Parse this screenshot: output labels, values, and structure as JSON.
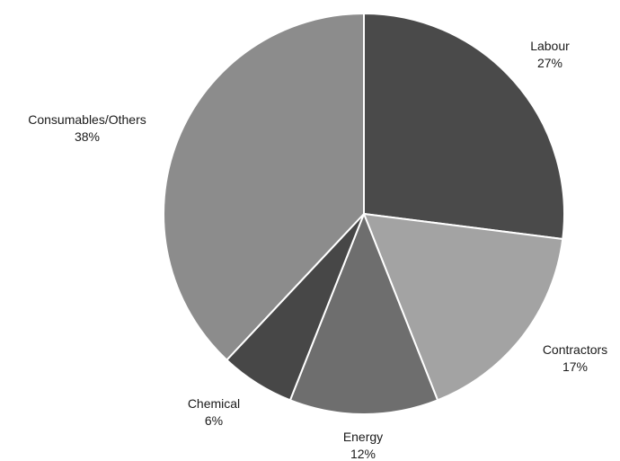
{
  "chart_data": {
    "type": "pie",
    "title": "",
    "start_angle_deg": 0,
    "direction": "clockwise",
    "slices": [
      {
        "label": "Labour",
        "value": 27,
        "value_label": "27%",
        "color": "#4a4a4a"
      },
      {
        "label": "Contractors",
        "value": 17,
        "value_label": "17%",
        "color": "#a3a3a3"
      },
      {
        "label": "Energy",
        "value": 12,
        "value_label": "12%",
        "color": "#6e6e6e"
      },
      {
        "label": "Chemical",
        "value": 6,
        "value_label": "6%",
        "color": "#474747"
      },
      {
        "label": "Consumables/Others",
        "value": 38,
        "value_label": "38%",
        "color": "#8c8c8c"
      }
    ]
  }
}
